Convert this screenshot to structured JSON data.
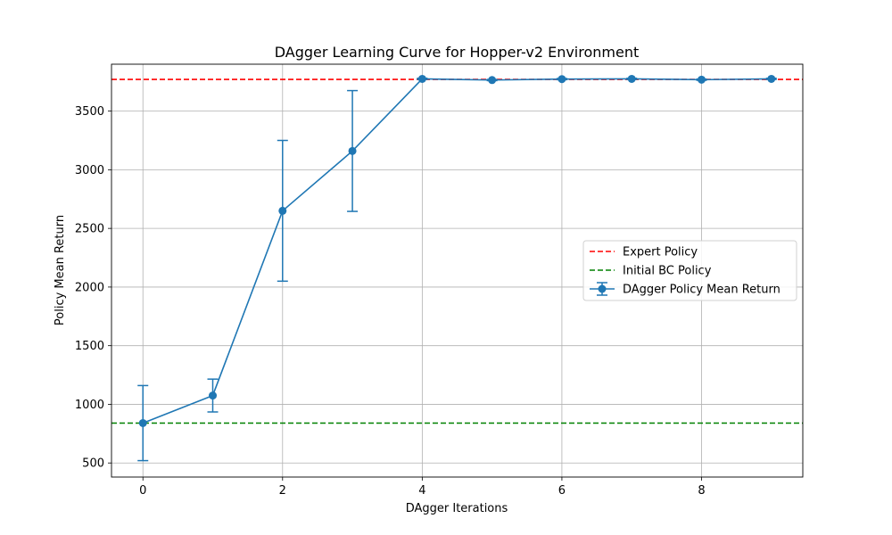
{
  "chart_data": {
    "type": "line",
    "title": "DAgger Learning Curve for Hopper-v2 Environment",
    "xlabel": "DAgger Iterations",
    "ylabel": "Policy Mean Return",
    "xlim": [
      -0.45,
      9.45
    ],
    "ylim": [
      380,
      3900
    ],
    "x_ticks": [
      0,
      2,
      4,
      6,
      8
    ],
    "y_ticks": [
      500,
      1000,
      1500,
      2000,
      2500,
      3000,
      3500
    ],
    "grid": true,
    "legend_position": "center-right",
    "series": [
      {
        "name": "DAgger Policy Mean Return",
        "color": "#1f77b4",
        "style": "solid-line-with-markers-and-errorbars",
        "x": [
          0,
          1,
          2,
          3,
          4,
          5,
          6,
          7,
          8,
          9
        ],
        "values": [
          840,
          1075,
          2650,
          3160,
          3775,
          3765,
          3773,
          3775,
          3768,
          3775
        ],
        "error": [
          320,
          140,
          600,
          515,
          5,
          5,
          5,
          5,
          5,
          5
        ]
      }
    ],
    "reference_lines": [
      {
        "name": "Expert Policy",
        "value": 3770,
        "color": "#ff0000",
        "style": "dashed"
      },
      {
        "name": "Initial BC Policy",
        "value": 840,
        "color": "#008000",
        "style": "dashed"
      }
    ]
  }
}
